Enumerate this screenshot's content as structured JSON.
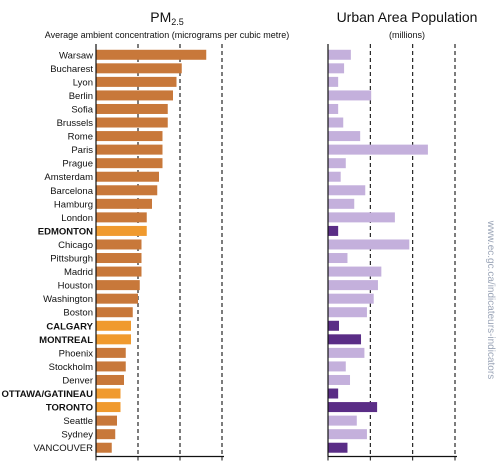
{
  "chart_data": [
    {
      "type": "bar",
      "orientation": "horizontal",
      "title": "PM",
      "title_subscript": "2.5",
      "subtitle": "Average ambient concentration (micrograms per cubic metre)",
      "categories": [
        "Warsaw",
        "Bucharest",
        "Lyon",
        "Berlin",
        "Sofia",
        "Brussels",
        "Rome",
        "Paris",
        "Prague",
        "Amsterdam",
        "Barcelona",
        "Hamburg",
        "London",
        "EDMONTON",
        "Chicago",
        "Pittsburgh",
        "Madrid",
        "Houston",
        "Washington",
        "Boston",
        "CALGARY",
        "MONTREAL",
        "Phoenix",
        "Stockholm",
        "Denver",
        "OTTAWA/GATINEAU",
        "TORONTO",
        "Seattle",
        "Sydney",
        "VANCOUVER"
      ],
      "values": [
        31.5,
        24.5,
        23,
        22,
        20.5,
        20.5,
        19,
        19,
        19,
        18,
        17.5,
        16,
        14.5,
        14.5,
        13,
        13,
        13,
        12.5,
        12,
        10.5,
        10,
        10,
        8.5,
        8.5,
        8,
        7,
        7,
        6,
        5.5,
        4.5
      ],
      "highlight": [
        false,
        false,
        false,
        false,
        false,
        false,
        false,
        false,
        false,
        false,
        false,
        false,
        false,
        true,
        false,
        false,
        false,
        false,
        false,
        false,
        true,
        true,
        false,
        false,
        false,
        true,
        true,
        false,
        false,
        false
      ],
      "xticks": [
        "0",
        "12",
        "24",
        "36"
      ],
      "xlim": [
        0,
        36
      ],
      "grid": "dashed vertical at 12, 24, 36",
      "colors": {
        "default": "#c8783a",
        "highlight": "#f09a2e"
      }
    },
    {
      "type": "bar",
      "orientation": "horizontal",
      "title": "Urban Area Population",
      "subtitle": "(millions)",
      "categories": [
        "Warsaw",
        "Bucharest",
        "Lyon",
        "Berlin",
        "Sofia",
        "Brussels",
        "Rome",
        "Paris",
        "Prague",
        "Amsterdam",
        "Barcelona",
        "Hamburg",
        "London",
        "EDMONTON",
        "Chicago",
        "Pittsburgh",
        "Madrid",
        "Houston",
        "Washington",
        "Boston",
        "CALGARY",
        "MONTREAL",
        "Phoenix",
        "Stockholm",
        "Denver",
        "OTTAWA/GATINEAU",
        "TORONTO",
        "Seattle",
        "Sydney",
        "VANCOUVER"
      ],
      "values": [
        2.7,
        1.9,
        1.2,
        5.1,
        1.2,
        1.8,
        3.8,
        11.8,
        2.1,
        1.5,
        4.4,
        3.1,
        7.9,
        1.2,
        9.6,
        2.3,
        6.3,
        5.9,
        5.4,
        4.6,
        1.3,
        3.9,
        4.3,
        2.1,
        2.6,
        1.2,
        5.8,
        3.4,
        4.6,
        2.3
      ],
      "highlight": [
        false,
        false,
        false,
        false,
        false,
        false,
        false,
        false,
        false,
        false,
        false,
        false,
        false,
        true,
        false,
        false,
        false,
        false,
        false,
        false,
        true,
        true,
        false,
        false,
        false,
        true,
        true,
        false,
        false,
        true
      ],
      "xticks": [
        "0",
        "5",
        "10",
        "15"
      ],
      "xlim": [
        0,
        15
      ],
      "grid": "dashed vertical at 5, 10, 15",
      "colors": {
        "default": "#c4b0dc",
        "highlight": "#5a2d86"
      }
    }
  ],
  "watermark": "www.ec.gc.ca/indicateurs-indicators"
}
